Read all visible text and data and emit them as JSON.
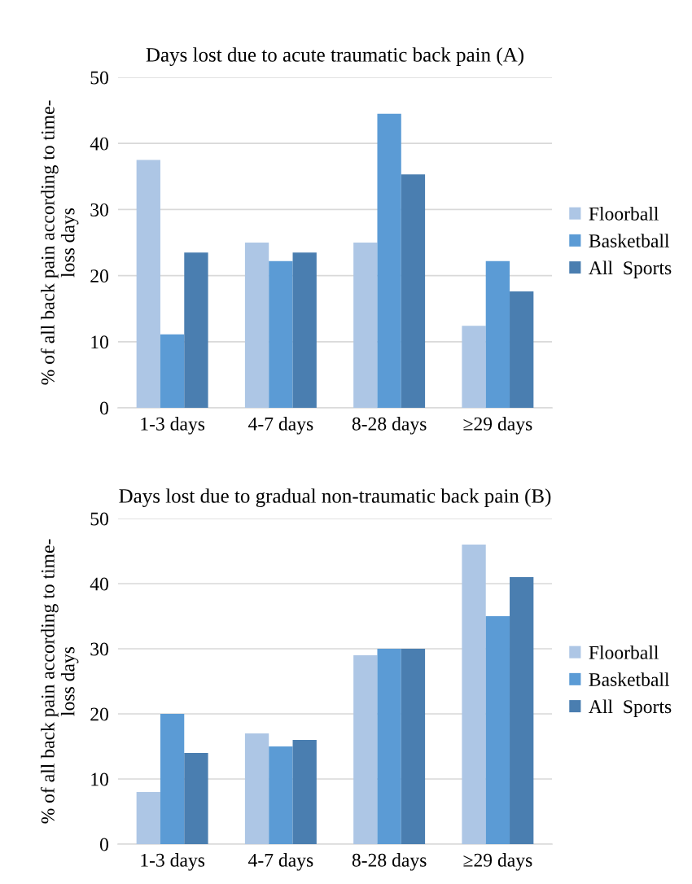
{
  "chart_data": [
    {
      "type": "bar",
      "title": "Days lost due to acute traumatic back pain (A)",
      "ylabel": "% of all back pain according to time-\nloss days",
      "categories": [
        "1-3 days",
        "4-7 days",
        "8-28 days",
        "≥29 days"
      ],
      "series": [
        {
          "name": "Floorball",
          "color": "#adc6e5",
          "values": [
            37.5,
            25,
            25,
            12.4
          ]
        },
        {
          "name": "Basketball",
          "color": "#5b9bd5",
          "values": [
            11.1,
            22.2,
            44.5,
            22.2
          ]
        },
        {
          "name": "All  Sports",
          "color": "#4a7eb0",
          "values": [
            23.5,
            23.5,
            35.3,
            17.6
          ]
        }
      ],
      "ylim": [
        0,
        50
      ],
      "yticks": [
        0,
        10,
        20,
        30,
        40,
        50
      ],
      "grid": "y",
      "legend": "right"
    },
    {
      "type": "bar",
      "title": "Days lost due to gradual non-traumatic back pain (B)",
      "ylabel": "% of all back pain according to time-\nloss days",
      "categories": [
        "1-3 days",
        "4-7 days",
        "8-28 days",
        "≥29 days"
      ],
      "series": [
        {
          "name": "Floorball",
          "color": "#adc6e5",
          "values": [
            8,
            17,
            29,
            46
          ]
        },
        {
          "name": "Basketball",
          "color": "#5b9bd5",
          "values": [
            20,
            15,
            30,
            35
          ]
        },
        {
          "name": "All  Sports",
          "color": "#4a7eb0",
          "values": [
            14,
            16,
            30,
            41
          ]
        }
      ],
      "ylim": [
        0,
        50
      ],
      "yticks": [
        0,
        10,
        20,
        30,
        40,
        50
      ],
      "grid": "y",
      "legend": "right"
    }
  ]
}
